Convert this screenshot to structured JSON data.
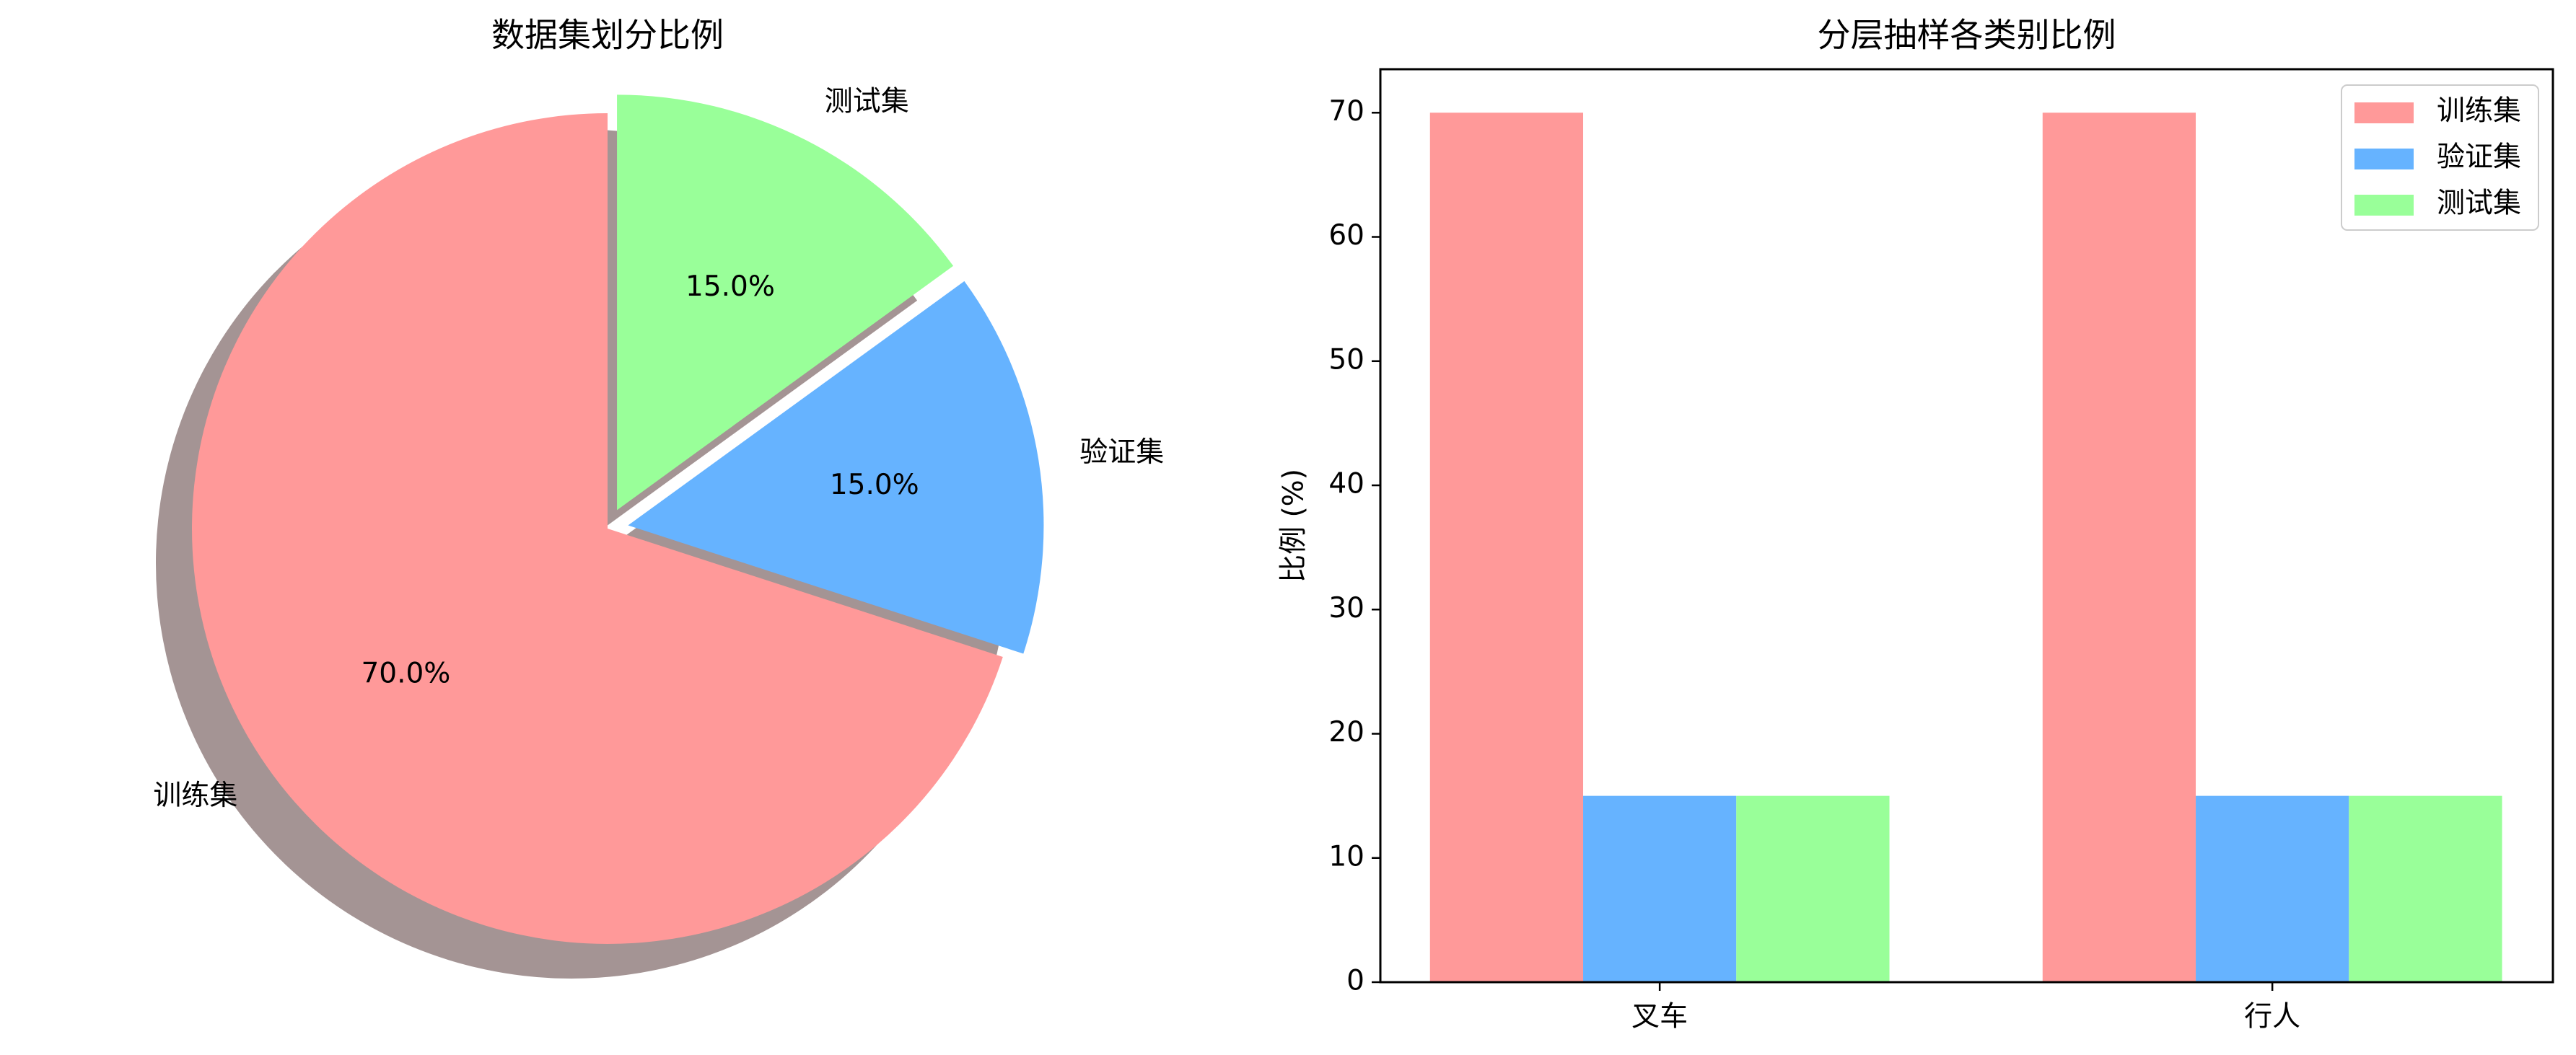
{
  "chart_data": [
    {
      "type": "pie",
      "title": "数据集划分比例",
      "labels": [
        "训练集",
        "验证集",
        "测试集"
      ],
      "values": [
        70,
        15,
        15
      ],
      "value_labels": [
        "70.0%",
        "15.0%",
        "15.0%"
      ],
      "colors": [
        "#ff9999",
        "#66b3ff",
        "#99ff99"
      ],
      "startangle": 90,
      "explode": [
        0,
        0.05,
        0.05
      ],
      "shadow": true
    },
    {
      "type": "bar",
      "title": "分层抽样各类别比例",
      "ylabel": "比例 (%)",
      "categories": [
        "叉车",
        "行人"
      ],
      "series": [
        {
          "name": "训练集",
          "color": "#ff9999",
          "values": [
            70,
            70
          ]
        },
        {
          "name": "验证集",
          "color": "#66b3ff",
          "values": [
            15,
            15
          ]
        },
        {
          "name": "测试集",
          "color": "#99ff99",
          "values": [
            15,
            15
          ]
        }
      ],
      "ylim": [
        0,
        73.5
      ],
      "yticks": [
        0,
        10,
        20,
        30,
        40,
        50,
        60,
        70
      ],
      "legend": "upper right"
    }
  ]
}
